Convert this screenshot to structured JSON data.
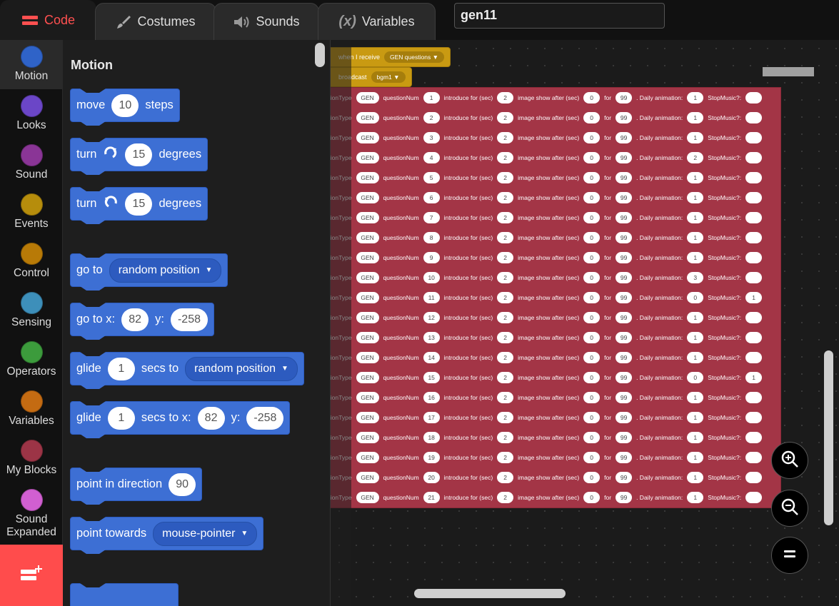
{
  "tabs": [
    {
      "label": "Code",
      "icon": "code-icon"
    },
    {
      "label": "Costumes",
      "icon": "brush-icon"
    },
    {
      "label": "Sounds",
      "icon": "speaker-icon"
    },
    {
      "label": "Variables",
      "icon": "variable-icon"
    }
  ],
  "sprite_name": "gen11",
  "categories": [
    {
      "label": "Motion",
      "color": "#2f63c8"
    },
    {
      "label": "Looks",
      "color": "#6b46c7"
    },
    {
      "label": "Sound",
      "color": "#8a3596"
    },
    {
      "label": "Events",
      "color": "#b68d0c"
    },
    {
      "label": "Control",
      "color": "#b87a07"
    },
    {
      "label": "Sensing",
      "color": "#3d8fba"
    },
    {
      "label": "Operators",
      "color": "#3c9b3c"
    },
    {
      "label": "Variables",
      "color": "#c46b12"
    },
    {
      "label": "My Blocks",
      "color": "#9c3446"
    },
    {
      "label": "Sound Expanded",
      "color": "#d15fd1"
    }
  ],
  "palette": {
    "title": "Motion",
    "move": {
      "a": "move",
      "v": "10",
      "b": "steps"
    },
    "turn_right": {
      "a": "turn",
      "v": "15",
      "b": "degrees"
    },
    "turn_left": {
      "a": "turn",
      "v": "15",
      "b": "degrees"
    },
    "goto": {
      "a": "go to",
      "menu": "random position"
    },
    "gotoxy": {
      "a": "go to x:",
      "x": "82",
      "y_label": "y:",
      "y": "-258"
    },
    "glide_to": {
      "a": "glide",
      "v": "1",
      "b": "secs to",
      "menu": "random position"
    },
    "glide_xy": {
      "a": "glide",
      "v": "1",
      "b": "secs to x:",
      "x": "82",
      "y_label": "y:",
      "y": "-258"
    },
    "point_dir": {
      "a": "point in direction",
      "v": "90"
    },
    "point_towards": {
      "a": "point towards",
      "menu": "mouse-pointer"
    }
  },
  "script": {
    "hat_label": "when I receive",
    "hat_menu": "GEN questions",
    "broadcast_label": "broadcast",
    "broadcast_menu": "bgm1",
    "labels": {
      "question_type": "questionType",
      "question_num": "questionNum",
      "introduce": "introduce for (sec)",
      "image_show": "image show after (sec)",
      "for": "for",
      "daily": ". Daily animation:",
      "stop_music": "StopMusic?:"
    },
    "rows": [
      {
        "type": "GEN",
        "num": "1",
        "intro": "2",
        "after": "0",
        "for": "99",
        "anim": "1",
        "stop": ""
      },
      {
        "type": "GEN",
        "num": "2",
        "intro": "2",
        "after": "0",
        "for": "99",
        "anim": "1",
        "stop": ""
      },
      {
        "type": "GEN",
        "num": "3",
        "intro": "2",
        "after": "0",
        "for": "99",
        "anim": "1",
        "stop": ""
      },
      {
        "type": "GEN",
        "num": "4",
        "intro": "2",
        "after": "0",
        "for": "99",
        "anim": "2",
        "stop": ""
      },
      {
        "type": "GEN",
        "num": "5",
        "intro": "2",
        "after": "0",
        "for": "99",
        "anim": "1",
        "stop": ""
      },
      {
        "type": "GEN",
        "num": "6",
        "intro": "2",
        "after": "0",
        "for": "99",
        "anim": "1",
        "stop": ""
      },
      {
        "type": "GEN",
        "num": "7",
        "intro": "2",
        "after": "0",
        "for": "99",
        "anim": "1",
        "stop": ""
      },
      {
        "type": "GEN",
        "num": "8",
        "intro": "2",
        "after": "0",
        "for": "99",
        "anim": "1",
        "stop": ""
      },
      {
        "type": "GEN",
        "num": "9",
        "intro": "2",
        "after": "0",
        "for": "99",
        "anim": "1",
        "stop": ""
      },
      {
        "type": "GEN",
        "num": "10",
        "intro": "2",
        "after": "0",
        "for": "99",
        "anim": "3",
        "stop": ""
      },
      {
        "type": "GEN",
        "num": "11",
        "intro": "2",
        "after": "0",
        "for": "99",
        "anim": "0",
        "stop": "1"
      },
      {
        "type": "GEN",
        "num": "12",
        "intro": "2",
        "after": "0",
        "for": "99",
        "anim": "1",
        "stop": ""
      },
      {
        "type": "GEN",
        "num": "13",
        "intro": "2",
        "after": "0",
        "for": "99",
        "anim": "1",
        "stop": ""
      },
      {
        "type": "GEN",
        "num": "14",
        "intro": "2",
        "after": "0",
        "for": "99",
        "anim": "1",
        "stop": ""
      },
      {
        "type": "GEN",
        "num": "15",
        "intro": "2",
        "after": "0",
        "for": "99",
        "anim": "0",
        "stop": "1"
      },
      {
        "type": "GEN",
        "num": "16",
        "intro": "2",
        "after": "0",
        "for": "99",
        "anim": "1",
        "stop": ""
      },
      {
        "type": "GEN",
        "num": "17",
        "intro": "2",
        "after": "0",
        "for": "99",
        "anim": "1",
        "stop": ""
      },
      {
        "type": "GEN",
        "num": "18",
        "intro": "2",
        "after": "0",
        "for": "99",
        "anim": "1",
        "stop": ""
      },
      {
        "type": "GEN",
        "num": "19",
        "intro": "2",
        "after": "0",
        "for": "99",
        "anim": "1",
        "stop": ""
      },
      {
        "type": "GEN",
        "num": "20",
        "intro": "2",
        "after": "0",
        "for": "99",
        "anim": "1",
        "stop": ""
      },
      {
        "type": "GEN",
        "num": "21",
        "intro": "2",
        "after": "0",
        "for": "99",
        "anim": "1",
        "stop": ""
      }
    ]
  },
  "zoom_controls": [
    "zoom-in-icon",
    "zoom-out-icon",
    "zoom-reset-icon"
  ],
  "colors": {
    "accent": "#ff4c4c",
    "motion": "#3d6fd4",
    "events": "#c99a12",
    "myblocks": "#a33546"
  }
}
